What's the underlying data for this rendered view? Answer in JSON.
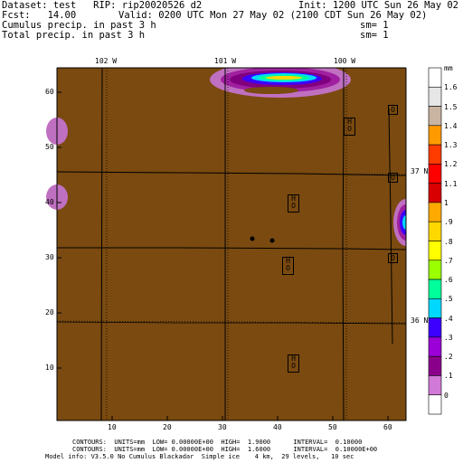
{
  "header": {
    "dataset": "Dataset: test   RIP: rip20020526 d2",
    "init": "Init: 1200 UTC Sun 26 May 02",
    "fcst": "Fcst:   14.00",
    "valid": "Valid: 0200 UTC Mon 27 May 02 (2100 CDT Sun 26 May 02)",
    "field1": "Cumulus precip. in past 3 h",
    "field1_sm": "sm= 1",
    "field2": "Total precip. in past 3 h",
    "field2_sm": "sm= 1"
  },
  "top_longitudes": [
    "102 W",
    "101 W",
    "100 W"
  ],
  "right_latitudes": [
    "37 N",
    "36 N"
  ],
  "x_ticks": [
    "10",
    "20",
    "30",
    "40",
    "50",
    "60"
  ],
  "y_ticks": [
    "60",
    "50",
    "40",
    "30",
    "20",
    "10"
  ],
  "map_colors": {
    "background": "#7a4a10"
  },
  "labelbar": {
    "unit": "mm",
    "labels": [
      "1.6",
      "1.5",
      "1.4",
      "1.3",
      "1.2",
      "1.1",
      "1",
      ".9",
      ".8",
      ".7",
      ".6",
      ".5",
      ".4",
      ".3",
      ".2",
      ".1",
      "0"
    ],
    "colors": [
      "#ffffff",
      "#e6e6e6",
      "#c9b4a2",
      "#ff9b00",
      "#ff3c00",
      "#ff0000",
      "#d80000",
      "#ffaa00",
      "#ffd800",
      "#ffff00",
      "#9bff00",
      "#00ff9b",
      "#00d8ff",
      "#3c00ff",
      "#9b00d8",
      "#8b008b",
      "#d27ad8",
      "#ffffff"
    ]
  },
  "markers": [
    {
      "code": "H",
      "sub": "O"
    },
    {
      "code": "H",
      "sub": "O"
    },
    {
      "code": "H",
      "sub": "O"
    },
    {
      "code": "H",
      "sub": "O"
    },
    {
      "code": "H",
      "sub": "O"
    },
    {
      "code": "H",
      "sub": "O"
    },
    {
      "code": "H",
      "sub": "O"
    }
  ],
  "footer": {
    "line1": "CONTOURS:  UNITS=mm  LOW= 0.00000E+00  HIGH=  1.9000      INTERVAL=  0.10000",
    "line2": "CONTOURS:  UNITS=mm  LOW= 0.00000E+00  HIGH=  1.6000      INTERVAL=  0.10000E+00",
    "line3": "Model info: V3.5.0 No Cumulus Blackadar  Simple ice    4 km,  29 levels,   10 sec"
  }
}
